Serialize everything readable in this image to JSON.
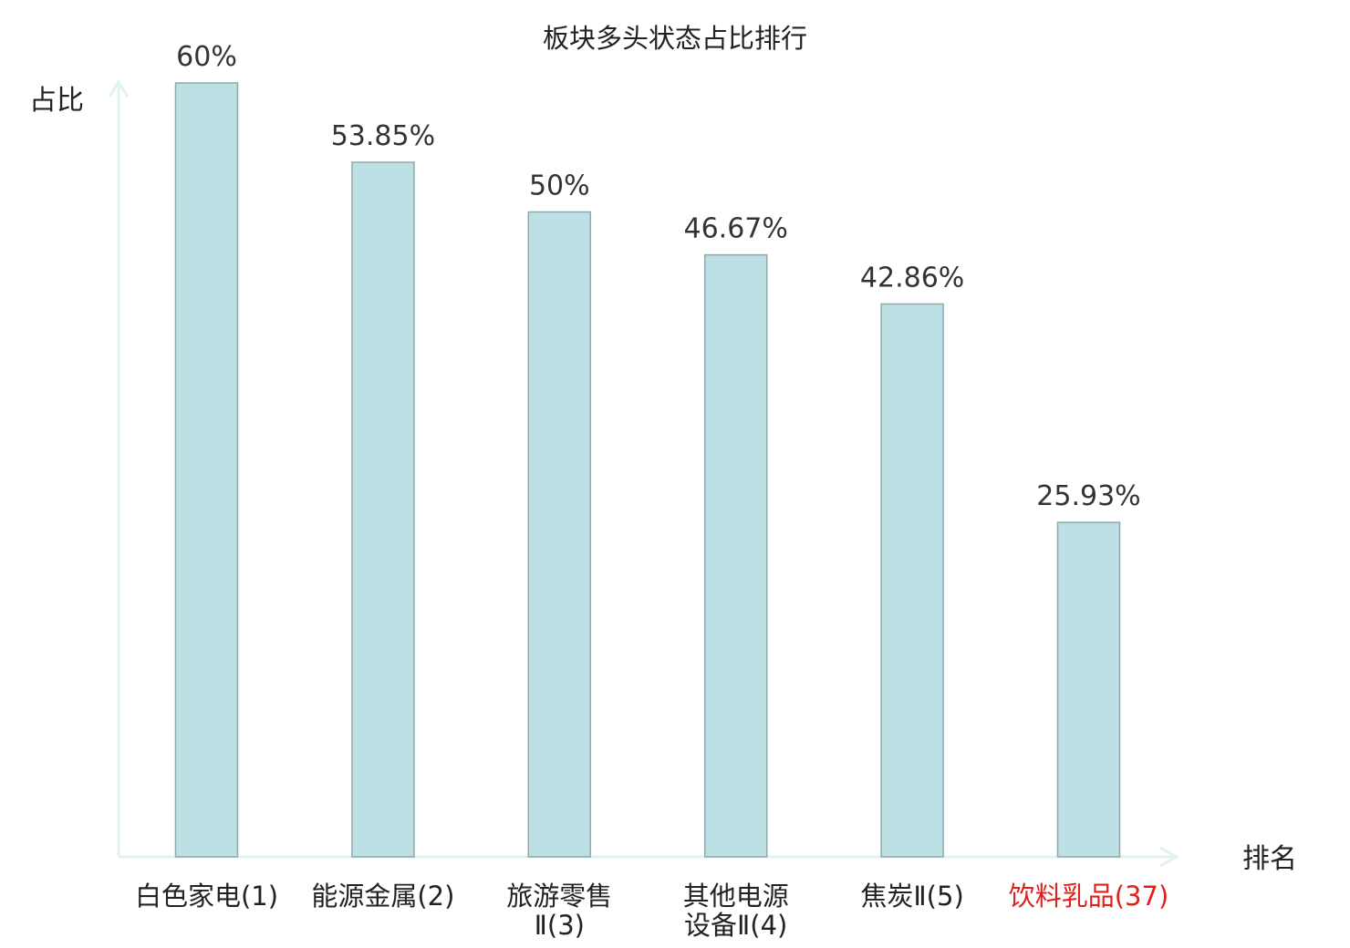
{
  "chart_data": {
    "type": "bar",
    "title": "板块多头状态占比排行",
    "xlabel": "排名",
    "ylabel": "占比",
    "ylim": [
      0,
      60
    ],
    "grid": false,
    "legend": "none",
    "categories": [
      [
        "白色家电(1)"
      ],
      [
        "能源金属(2)"
      ],
      [
        "旅游零售",
        "Ⅱ(3)"
      ],
      [
        "其他电源",
        "设备Ⅱ(4)"
      ],
      [
        "焦炭Ⅱ(5)"
      ],
      [
        "饮料乳品(37)"
      ]
    ],
    "values": [
      60,
      53.85,
      50,
      46.67,
      42.86,
      25.93
    ],
    "value_labels": [
      "60%",
      "53.85%",
      "50%",
      "46.67%",
      "42.86%",
      "25.93%"
    ],
    "highlighted_category_index": 5
  },
  "colors": {
    "bar_fill": "#bce0e3",
    "bar_stroke": "#8fa9ad",
    "axis": "#e0f2f1",
    "text": "#222222",
    "value_text": "#333333",
    "highlight_text": "#e0201a"
  }
}
